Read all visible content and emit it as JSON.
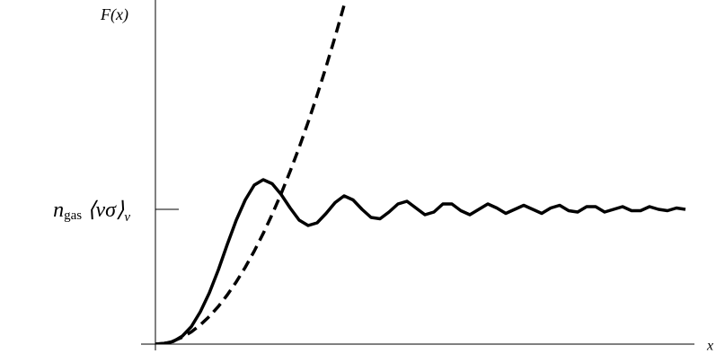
{
  "chart_data": {
    "type": "line",
    "ylabel": "F(x)",
    "xlabel": "x",
    "xlim": [
      0,
      6
    ],
    "ylim": [
      0,
      2.55
    ],
    "yticks": [
      {
        "value": 1,
        "label": [
          "n",
          "gas",
          "⟨vσ⟩",
          "v"
        ]
      }
    ],
    "series": [
      {
        "color": "#000000",
        "dashed": false,
        "x": [
          0,
          0.1,
          0.2,
          0.3,
          0.4,
          0.5,
          0.6,
          0.7,
          0.8,
          0.9,
          1.0,
          1.1,
          1.2,
          1.3,
          1.4,
          1.5,
          1.6,
          1.7,
          1.8,
          1.9,
          2.0,
          2.1,
          2.2,
          2.3,
          2.4,
          2.5,
          2.6,
          2.7,
          2.8,
          2.9,
          3.0,
          3.1,
          3.2,
          3.3,
          3.4,
          3.5,
          3.6,
          3.7,
          3.8,
          3.9,
          4.0,
          4.1,
          4.2,
          4.3,
          4.4,
          4.5,
          4.6,
          4.7,
          4.8,
          4.9,
          5.0,
          5.1,
          5.2,
          5.3,
          5.4,
          5.5,
          5.6,
          5.7,
          5.8,
          5.9
        ],
        "values": [
          0,
          0.005,
          0.02,
          0.06,
          0.13,
          0.24,
          0.38,
          0.55,
          0.74,
          0.92,
          1.07,
          1.18,
          1.22,
          1.19,
          1.11,
          1.01,
          0.92,
          0.88,
          0.9,
          0.97,
          1.05,
          1.1,
          1.07,
          1.0,
          0.94,
          0.93,
          0.98,
          1.04,
          1.06,
          1.01,
          0.96,
          0.98,
          1.04,
          1.04,
          0.99,
          0.96,
          1.0,
          1.04,
          1.01,
          0.97,
          1.0,
          1.03,
          1.0,
          0.97,
          1.01,
          1.03,
          0.99,
          0.98,
          1.02,
          1.02,
          0.98,
          1.0,
          1.02,
          0.99,
          0.99,
          1.02,
          1.0,
          0.99,
          1.01,
          1.0
        ]
      },
      {
        "color": "#000000",
        "dashed": true,
        "x": [
          0,
          0.1,
          0.2,
          0.3,
          0.4,
          0.5,
          0.6,
          0.7,
          0.8,
          0.9,
          1.0,
          1.1,
          1.2,
          1.3,
          1.4,
          1.5,
          1.6,
          1.7,
          1.8,
          1.9,
          2.0,
          2.1
        ],
        "values": [
          0,
          0.006,
          0.023,
          0.051,
          0.091,
          0.143,
          0.205,
          0.279,
          0.365,
          0.462,
          0.57,
          0.69,
          0.821,
          0.963,
          1.117,
          1.283,
          1.459,
          1.647,
          1.847,
          2.058,
          2.28,
          2.514
        ]
      }
    ]
  }
}
